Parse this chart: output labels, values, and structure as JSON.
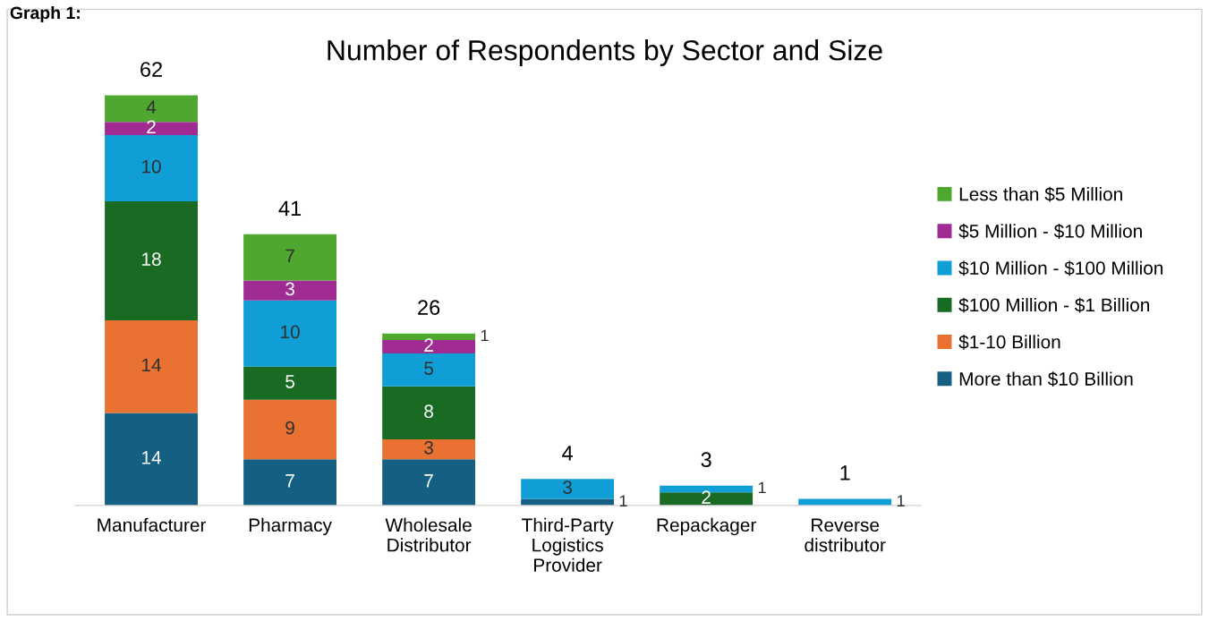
{
  "chart_data": {
    "type": "bar",
    "stacked": true,
    "title": "Number of Respondents by Sector and Size",
    "categories": [
      "Manufacturer",
      "Pharmacy",
      "Wholesale Distributor",
      "Third-Party Logistics Provider",
      "Repackager",
      "Reverse distributor"
    ],
    "series": [
      {
        "name": "More than $10 Billion",
        "color": "#156082",
        "values": [
          14,
          7,
          7,
          1,
          0,
          0
        ],
        "value_labels": [
          "14",
          "7",
          "7",
          "1",
          null,
          null
        ]
      },
      {
        "name": "$1-10 Billion",
        "color": "#e97132",
        "values": [
          14,
          9,
          3,
          0,
          0,
          0
        ],
        "value_labels": [
          "14",
          "9",
          "3",
          null,
          null,
          null
        ]
      },
      {
        "name": "$100 Million - $1 Billion",
        "color": "#196b24",
        "values": [
          18,
          5,
          8,
          0,
          2,
          0
        ],
        "value_labels": [
          "18",
          "5",
          "8",
          null,
          "2",
          null
        ]
      },
      {
        "name": "$10 Million - $100 Million",
        "color": "#0f9ed5",
        "values": [
          10,
          10,
          5,
          3,
          1,
          1
        ],
        "value_labels": [
          "10",
          "10",
          "5",
          "3",
          "1",
          "1"
        ]
      },
      {
        "name": "$5 Million - $10 Million",
        "color": "#a02b93",
        "values": [
          2,
          3,
          2,
          0,
          0,
          0
        ],
        "value_labels": [
          "2",
          "3",
          "2",
          null,
          null,
          null
        ]
      },
      {
        "name": "Less than $5 Million",
        "color": "#4ea72e",
        "values": [
          4,
          7,
          1,
          0,
          0,
          0
        ],
        "value_labels": [
          "4",
          "7",
          "1",
          null,
          null,
          null
        ]
      }
    ],
    "totals": [
      "62",
      "41",
      "26",
      "4",
      "3",
      "1"
    ],
    "legend": "right",
    "tick_labels": "x",
    "annotations": [
      "Graph 1:"
    ]
  }
}
